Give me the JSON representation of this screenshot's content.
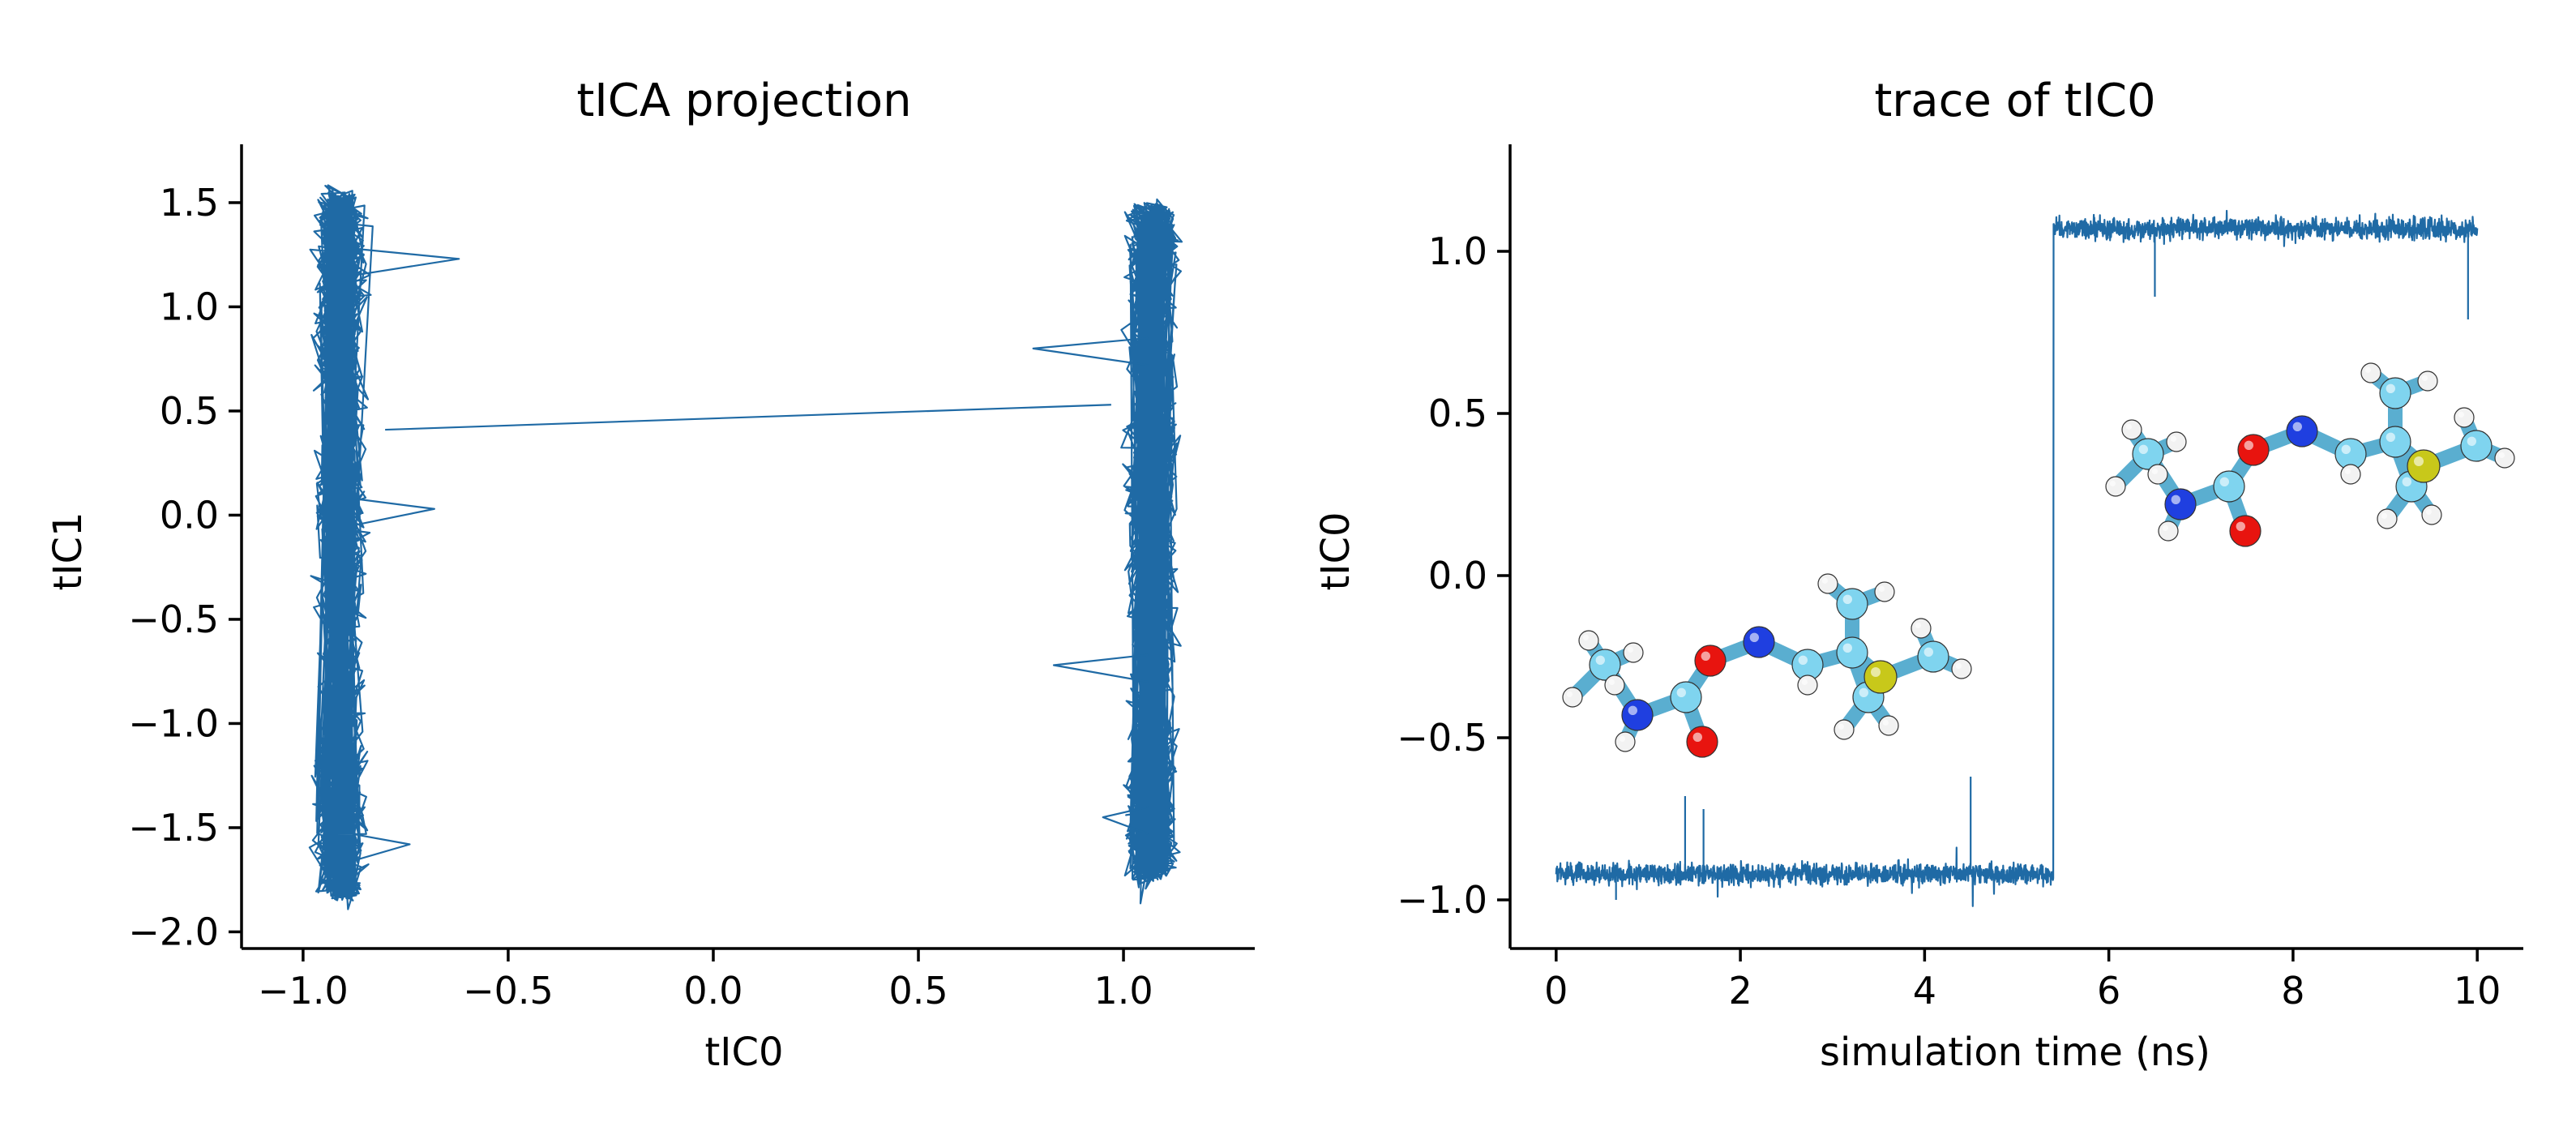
{
  "chart_data": [
    {
      "type": "line",
      "title": "tICA projection",
      "xlabel": "tIC0",
      "ylabel": "tIC1",
      "xlim": [
        -1.15,
        1.32
      ],
      "ylim": [
        -2.08,
        1.78
      ],
      "xticks": [
        -1.0,
        -0.5,
        0.0,
        0.5,
        1.0
      ],
      "xtick_labels": [
        "−1.0",
        "−0.5",
        "0.0",
        "0.5",
        "1.0"
      ],
      "yticks": [
        -2.0,
        -1.5,
        -1.0,
        -0.5,
        0.0,
        0.5,
        1.0,
        1.5
      ],
      "ytick_labels": [
        "−2.0",
        "−1.5",
        "−1.0",
        "−0.5",
        "0.0",
        "0.5",
        "1.0",
        "1.5"
      ],
      "grid": false,
      "color": "#1f6aa5",
      "series": [
        {
          "description_clusters": [
            {
              "x_center": -0.91,
              "x_spread": 0.05,
              "y_range": [
                -1.85,
                1.55
              ]
            },
            {
              "x_center": 1.07,
              "x_spread": 0.05,
              "y_range": [
                -1.75,
                1.5
              ]
            }
          ],
          "outlier_points": [
            [
              -0.62,
              1.23
            ],
            [
              -0.68,
              0.03
            ],
            [
              -0.74,
              -1.58
            ],
            [
              0.78,
              0.8
            ],
            [
              0.83,
              -0.72
            ],
            [
              0.95,
              -1.45
            ]
          ],
          "transition": {
            "x": [
              -0.8,
              0.97
            ],
            "y": [
              0.41,
              0.53
            ]
          }
        }
      ]
    },
    {
      "type": "line",
      "title": "trace of tIC0",
      "xlabel": "simulation time (ns)",
      "ylabel": "tIC0",
      "xlim": [
        -0.5,
        10.5
      ],
      "ylim": [
        -1.15,
        1.33
      ],
      "xticks": [
        0,
        2,
        4,
        6,
        8,
        10
      ],
      "xtick_labels": [
        "0",
        "2",
        "4",
        "6",
        "8",
        "10"
      ],
      "yticks": [
        -1.0,
        -0.5,
        0.0,
        0.5,
        1.0
      ],
      "ytick_labels": [
        "−1.0",
        "−0.5",
        "0.0",
        "0.5",
        "1.0"
      ],
      "grid": false,
      "color": "#1f6aa5",
      "series": [
        {
          "segments": [
            {
              "t_range": [
                0.0,
                5.4
              ],
              "mean": -0.92,
              "noise": 0.03
            },
            {
              "t_range": [
                5.4,
                10.0
              ],
              "mean": 1.07,
              "noise": 0.03
            }
          ],
          "spikes": [
            [
              1.4,
              -0.68
            ],
            [
              1.6,
              -0.72
            ],
            [
              4.5,
              -0.62
            ],
            [
              9.9,
              0.79
            ],
            [
              0.65,
              -1.0
            ],
            [
              6.5,
              0.86
            ]
          ],
          "transition_time": 5.4
        }
      ]
    }
  ],
  "molecule": {
    "atom_colors": {
      "C": "#7fd4ef",
      "N": "#1f3fe0",
      "O": "#e8140f",
      "S": "#c8c81a",
      "H": "#f2f2f2"
    }
  }
}
